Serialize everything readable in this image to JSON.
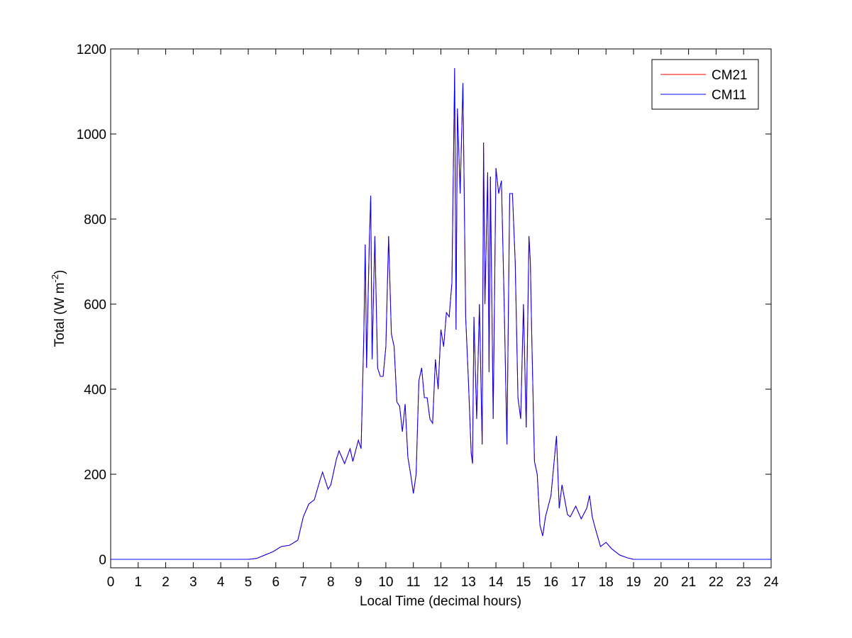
{
  "chart_data": {
    "type": "line",
    "xlabel": "Local Time (decimal hours)",
    "ylabel": [
      "Total (W m",
      "-2",
      ")"
    ],
    "x": [
      0,
      5,
      5.3,
      5.6,
      5.9,
      6.2,
      6.5,
      6.8,
      7.0,
      7.2,
      7.4,
      7.6,
      7.7,
      7.9,
      8.0,
      8.2,
      8.3,
      8.5,
      8.7,
      8.8,
      9.0,
      9.1,
      9.2,
      9.25,
      9.3,
      9.4,
      9.45,
      9.5,
      9.6,
      9.7,
      9.8,
      9.9,
      10.0,
      10.1,
      10.2,
      10.3,
      10.4,
      10.5,
      10.6,
      10.7,
      10.8,
      10.9,
      11.0,
      11.1,
      11.2,
      11.3,
      11.4,
      11.5,
      11.6,
      11.7,
      11.8,
      11.9,
      12.0,
      12.1,
      12.2,
      12.3,
      12.4,
      12.5,
      12.55,
      12.6,
      12.7,
      12.8,
      12.9,
      13.0,
      13.1,
      13.15,
      13.2,
      13.3,
      13.4,
      13.5,
      13.55,
      13.6,
      13.7,
      13.75,
      13.8,
      13.9,
      14.0,
      14.1,
      14.2,
      14.3,
      14.4,
      14.5,
      14.6,
      14.7,
      14.8,
      14.9,
      15.0,
      15.1,
      15.2,
      15.25,
      15.3,
      15.4,
      15.5,
      15.6,
      15.7,
      15.8,
      16.0,
      16.1,
      16.2,
      16.3,
      16.4,
      16.5,
      16.6,
      16.7,
      16.9,
      17.1,
      17.3,
      17.4,
      17.5,
      17.6,
      17.8,
      18.0,
      18.2,
      18.5,
      18.8,
      19.0,
      24
    ],
    "series": [
      {
        "name": "CM21",
        "color": "#ff0000",
        "values": [
          0,
          0,
          2,
          10,
          18,
          30,
          33,
          45,
          100,
          130,
          140,
          185,
          205,
          165,
          175,
          235,
          255,
          225,
          260,
          230,
          280,
          260,
          530,
          740,
          450,
          750,
          855,
          470,
          760,
          450,
          430,
          430,
          500,
          760,
          530,
          500,
          370,
          360,
          300,
          365,
          240,
          200,
          155,
          200,
          420,
          450,
          380,
          380,
          330,
          320,
          470,
          400,
          540,
          500,
          580,
          570,
          650,
          1155,
          540,
          1060,
          860,
          1120,
          570,
          420,
          250,
          225,
          570,
          330,
          600,
          270,
          980,
          600,
          910,
          440,
          900,
          330,
          920,
          860,
          890,
          600,
          270,
          860,
          860,
          700,
          380,
          330,
          600,
          310,
          760,
          700,
          530,
          230,
          200,
          80,
          55,
          100,
          150,
          220,
          290,
          120,
          175,
          140,
          105,
          100,
          125,
          95,
          120,
          150,
          100,
          75,
          30,
          40,
          25,
          10,
          3,
          0,
          0
        ]
      },
      {
        "name": "CM11",
        "color": "#0000ff",
        "values": [
          0,
          0,
          2,
          10,
          18,
          30,
          33,
          45,
          100,
          130,
          140,
          185,
          205,
          165,
          175,
          235,
          255,
          225,
          260,
          230,
          280,
          260,
          530,
          740,
          450,
          750,
          855,
          470,
          760,
          450,
          430,
          430,
          500,
          760,
          530,
          500,
          370,
          360,
          300,
          365,
          240,
          200,
          155,
          200,
          420,
          450,
          380,
          380,
          330,
          320,
          470,
          400,
          540,
          500,
          580,
          570,
          650,
          1155,
          540,
          1060,
          860,
          1120,
          570,
          420,
          250,
          225,
          570,
          330,
          600,
          270,
          980,
          600,
          910,
          440,
          900,
          330,
          920,
          860,
          890,
          600,
          270,
          860,
          860,
          700,
          380,
          330,
          600,
          310,
          760,
          700,
          530,
          230,
          200,
          80,
          55,
          100,
          150,
          220,
          290,
          120,
          175,
          140,
          105,
          100,
          125,
          95,
          120,
          150,
          100,
          75,
          30,
          40,
          25,
          10,
          3,
          0,
          0
        ]
      }
    ],
    "xlim": [
      0,
      24
    ],
    "xticks": [
      0,
      1,
      2,
      3,
      4,
      5,
      6,
      7,
      8,
      9,
      10,
      11,
      12,
      13,
      14,
      15,
      16,
      17,
      18,
      19,
      20,
      21,
      22,
      23,
      24
    ],
    "ylim": [
      -20,
      1200
    ],
    "yticks": [
      0,
      200,
      400,
      600,
      800,
      1000,
      1200
    ],
    "legend": "northeast",
    "grid": false
  }
}
